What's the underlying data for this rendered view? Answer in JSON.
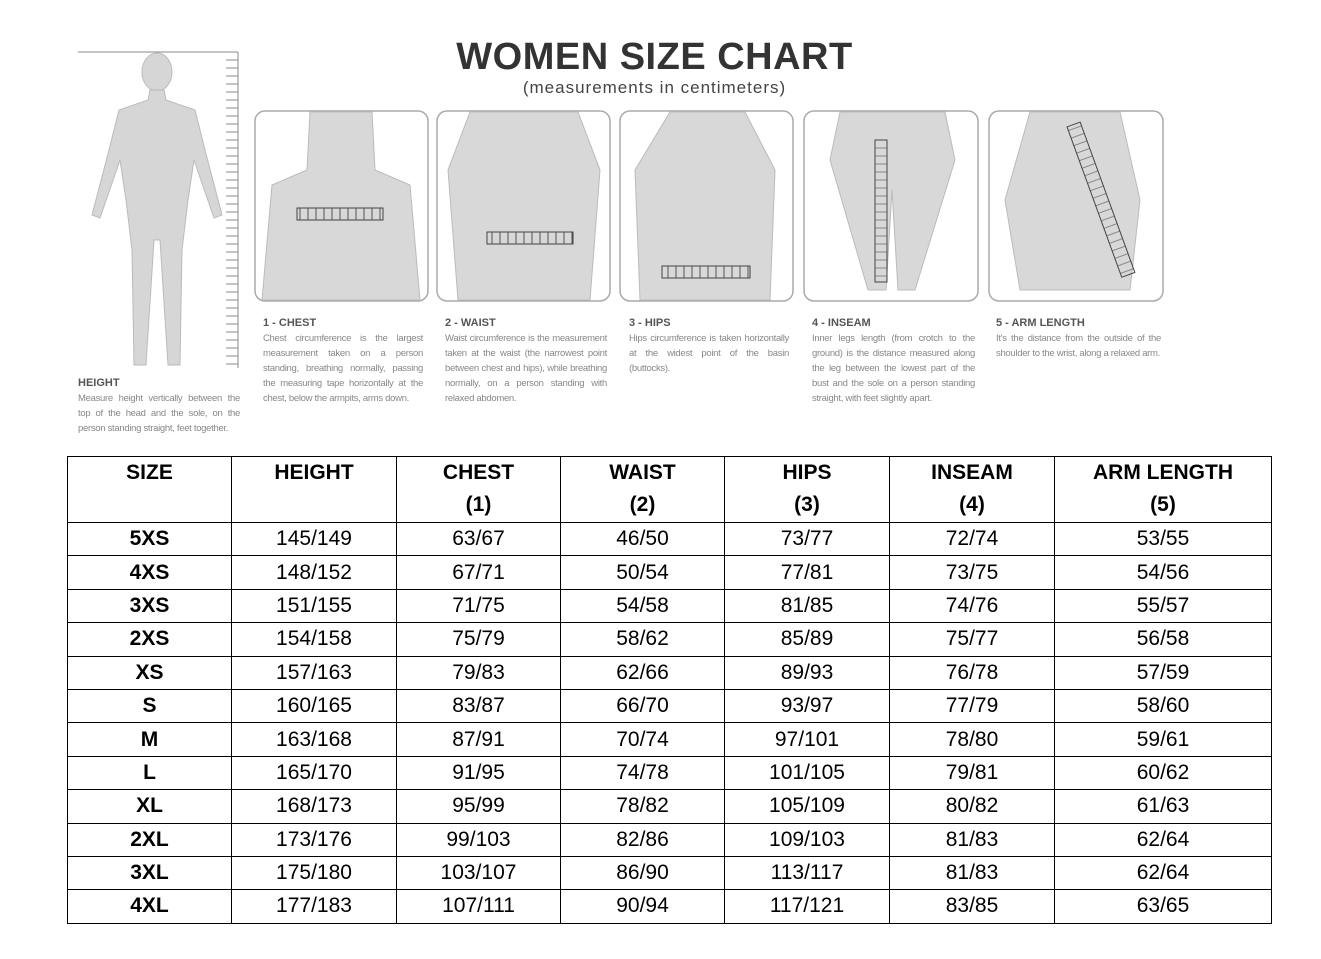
{
  "header": {
    "title": "WOMEN SIZE CHART",
    "subtitle": "(measurements in centimeters)"
  },
  "guide": [
    {
      "label": "HEIGHT",
      "description": "Measure height vertically between the top of the head and the sole, on the person standing straight, feet together."
    },
    {
      "label": "1 - CHEST",
      "description": "Chest circumference is the largest measurement taken on a person standing, breathing normally, passing the measuring tape horizontally at the chest, below the armpits, arms down."
    },
    {
      "label": "2 - WAIST",
      "description": "Waist circumference is the measurement taken at the waist (the narrowest point between chest and hips), while breathing normally, on a person standing with relaxed abdomen."
    },
    {
      "label": "3 - HIPS",
      "description": "Hips circumference is taken horizontally at the widest point of the basin (buttocks)."
    },
    {
      "label": "4 - INSEAM",
      "description": "Inner legs length (from crotch to the ground) is the distance measured along the leg between the lowest part of the bust and the sole on a person standing straight, with feet slightly apart."
    },
    {
      "label": "5 - ARM LENGTH",
      "description": "It's the distance from the outside of the shoulder to the wrist, along a relaxed arm."
    }
  ],
  "table": {
    "columns": [
      {
        "label": "SIZE"
      },
      {
        "label": "HEIGHT"
      },
      {
        "label": "CHEST",
        "note": "(1)"
      },
      {
        "label": "WAIST",
        "note": "(2)"
      },
      {
        "label": "HIPS",
        "note": "(3)"
      },
      {
        "label": "INSEAM",
        "note": "(4)"
      },
      {
        "label": "ARM LENGTH",
        "note": "(5)"
      }
    ],
    "rows": [
      [
        "5XS",
        "145/149",
        "63/67",
        "46/50",
        "73/77",
        "72/74",
        "53/55"
      ],
      [
        "4XS",
        "148/152",
        "67/71",
        "50/54",
        "77/81",
        "73/75",
        "54/56"
      ],
      [
        "3XS",
        "151/155",
        "71/75",
        "54/58",
        "81/85",
        "74/76",
        "55/57"
      ],
      [
        "2XS",
        "154/158",
        "75/79",
        "58/62",
        "85/89",
        "75/77",
        "56/58"
      ],
      [
        "XS",
        "157/163",
        "79/83",
        "62/66",
        "89/93",
        "76/78",
        "57/59"
      ],
      [
        "S",
        "160/165",
        "83/87",
        "66/70",
        "93/97",
        "77/79",
        "58/60"
      ],
      [
        "M",
        "163/168",
        "87/91",
        "70/74",
        "97/101",
        "78/80",
        "59/61"
      ],
      [
        "L",
        "165/170",
        "91/95",
        "74/78",
        "101/105",
        "79/81",
        "60/62"
      ],
      [
        "XL",
        "168/173",
        "95/99",
        "78/82",
        "105/109",
        "80/82",
        "61/63"
      ],
      [
        "2XL",
        "173/176",
        "99/103",
        "82/86",
        "109/103",
        "81/83",
        "62/64"
      ],
      [
        "3XL",
        "175/180",
        "103/107",
        "86/90",
        "113/117",
        "81/83",
        "62/64"
      ],
      [
        "4XL",
        "177/183",
        "107/111",
        "90/94",
        "117/121",
        "83/85",
        "63/65"
      ]
    ]
  }
}
